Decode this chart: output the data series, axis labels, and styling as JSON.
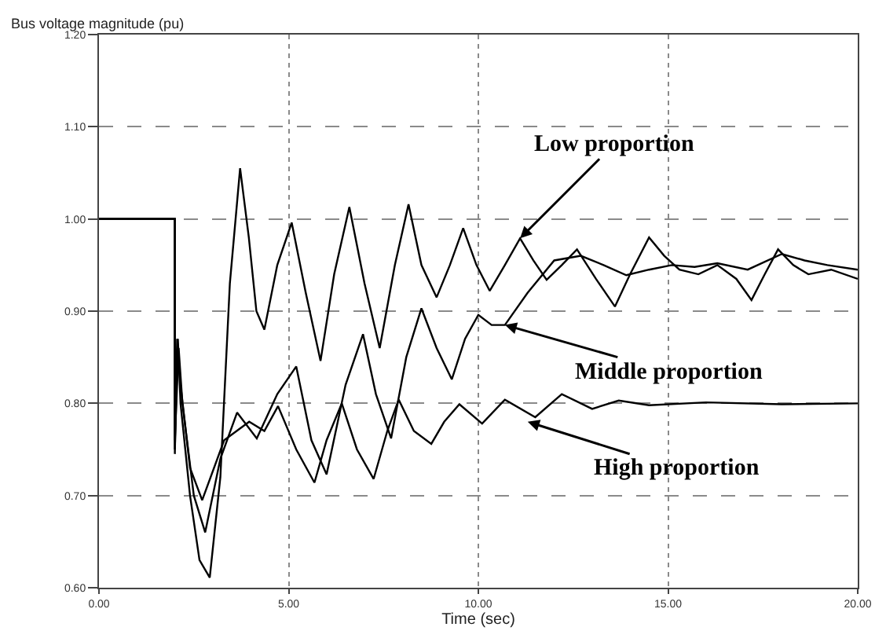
{
  "chart_data": {
    "type": "line",
    "xlabel": "Time (sec)",
    "ylabel": "Bus voltage magnitude (pu)",
    "xlim": [
      0,
      20
    ],
    "xticks": [
      {
        "value": 0,
        "label": "0.00"
      },
      {
        "value": 5,
        "label": "5.00"
      },
      {
        "value": 10,
        "label": "10.00"
      },
      {
        "value": 15,
        "label": "15.00"
      },
      {
        "value": 20,
        "label": "20.00"
      }
    ],
    "ylim": [
      0.6,
      1.2
    ],
    "yticks": [
      {
        "value": 0.6,
        "label": "0.60"
      },
      {
        "value": 0.7,
        "label": "0.70"
      },
      {
        "value": 0.8,
        "label": "0.80"
      },
      {
        "value": 0.9,
        "label": "0.90"
      },
      {
        "value": 1.0,
        "label": "1.00"
      },
      {
        "value": 1.1,
        "label": "1.10"
      },
      {
        "value": 1.2,
        "label": "1.20"
      }
    ],
    "grid": true,
    "marker": "none",
    "line_style": "solid",
    "series": [
      {
        "color": "#000000",
        "x": [
          0,
          2.0,
          2.0,
          2.08,
          2.15,
          2.4,
          2.65,
          2.92,
          3.2,
          3.45,
          3.72,
          3.95,
          4.15,
          4.36,
          4.7,
          5.08,
          5.45,
          5.84,
          6.2,
          6.6,
          7.0,
          7.4,
          7.8,
          8.16,
          8.5,
          8.9,
          9.25,
          9.6,
          9.95,
          10.3,
          10.7,
          11.1,
          11.45,
          11.8,
          12.2,
          12.6,
          13.1,
          13.6,
          14.0,
          14.5,
          14.9,
          15.3,
          15.8,
          16.3,
          16.8,
          17.2,
          17.55,
          17.9,
          18.3,
          18.7,
          19.3,
          20
        ],
        "values": [
          1.0,
          1.0,
          0.75,
          0.87,
          0.8,
          0.7,
          0.63,
          0.611,
          0.72,
          0.93,
          1.055,
          0.98,
          0.9,
          0.88,
          0.95,
          0.996,
          0.92,
          0.846,
          0.94,
          1.013,
          0.93,
          0.86,
          0.95,
          1.016,
          0.95,
          0.915,
          0.95,
          0.99,
          0.95,
          0.922,
          0.95,
          0.979,
          0.955,
          0.934,
          0.95,
          0.967,
          0.935,
          0.905,
          0.94,
          0.98,
          0.96,
          0.945,
          0.94,
          0.95,
          0.935,
          0.912,
          0.94,
          0.967,
          0.95,
          0.94,
          0.945,
          0.935
        ]
      },
      {
        "color": "#000000",
        "x": [
          0,
          2.0,
          2.0,
          2.1,
          2.2,
          2.5,
          2.8,
          3.2,
          3.64,
          4.16,
          4.7,
          5.2,
          5.6,
          6.0,
          6.5,
          6.96,
          7.3,
          7.7,
          8.1,
          8.5,
          8.9,
          9.3,
          9.65,
          10.0,
          10.35,
          10.7,
          11.3,
          12.0,
          12.7,
          13.3,
          13.9,
          14.5,
          15.1,
          15.7,
          16.3,
          17.1,
          18.0,
          18.6,
          19.2,
          20
        ],
        "values": [
          1.0,
          1.0,
          0.76,
          0.86,
          0.8,
          0.7,
          0.66,
          0.74,
          0.79,
          0.762,
          0.81,
          0.84,
          0.76,
          0.723,
          0.82,
          0.875,
          0.81,
          0.762,
          0.85,
          0.903,
          0.86,
          0.826,
          0.87,
          0.896,
          0.885,
          0.885,
          0.92,
          0.955,
          0.96,
          0.95,
          0.939,
          0.945,
          0.95,
          0.948,
          0.952,
          0.945,
          0.962,
          0.955,
          0.95,
          0.945
        ]
      },
      {
        "color": "#000000",
        "x": [
          0,
          2.0,
          2.0,
          2.06,
          2.15,
          2.4,
          2.72,
          3.3,
          3.96,
          4.36,
          4.72,
          5.2,
          5.68,
          6.0,
          6.4,
          6.8,
          7.24,
          7.6,
          7.9,
          8.3,
          8.76,
          9.1,
          9.5,
          10.1,
          10.7,
          11.5,
          12.2,
          13.0,
          13.7,
          14.5,
          16.0,
          18.0,
          20
        ],
        "values": [
          1.0,
          1.0,
          0.745,
          0.87,
          0.82,
          0.73,
          0.695,
          0.76,
          0.78,
          0.77,
          0.797,
          0.75,
          0.714,
          0.76,
          0.8,
          0.75,
          0.718,
          0.77,
          0.804,
          0.77,
          0.756,
          0.78,
          0.799,
          0.778,
          0.804,
          0.785,
          0.81,
          0.794,
          0.803,
          0.798,
          0.801,
          0.799,
          0.8
        ]
      }
    ],
    "annotations": [
      {
        "text": "Low proportion",
        "x": 11.1,
        "y": 0.979
      },
      {
        "text": "Middle proportion",
        "x": 10.7,
        "y": 0.885
      },
      {
        "text": "High proportion",
        "x": 11.3,
        "y": 0.78
      }
    ]
  }
}
